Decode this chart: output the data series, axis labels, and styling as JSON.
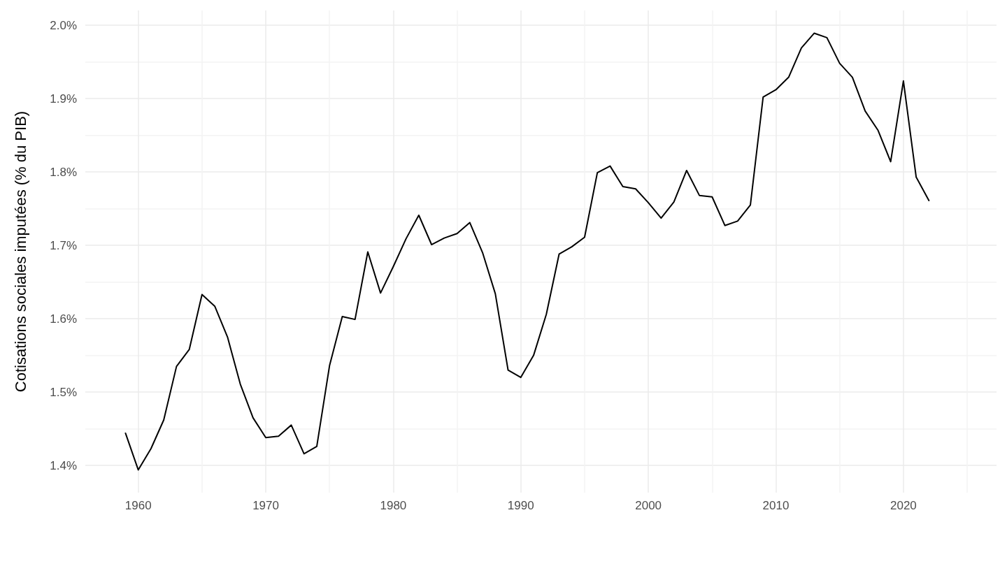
{
  "chart_data": {
    "type": "line",
    "ylabel": "Cotisations sociales imputées (% du PIB)",
    "x": [
      1959,
      1960,
      1961,
      1962,
      1963,
      1964,
      1965,
      1966,
      1967,
      1968,
      1969,
      1970,
      1971,
      1972,
      1973,
      1974,
      1975,
      1976,
      1977,
      1978,
      1979,
      1980,
      1981,
      1982,
      1983,
      1984,
      1985,
      1986,
      1987,
      1988,
      1989,
      1990,
      1991,
      1992,
      1993,
      1994,
      1995,
      1996,
      1997,
      1998,
      1999,
      2000,
      2001,
      2002,
      2003,
      2004,
      2005,
      2006,
      2007,
      2008,
      2009,
      2010,
      2011,
      2012,
      2013,
      2014,
      2015,
      2016,
      2017,
      2018,
      2019,
      2020,
      2021,
      2022
    ],
    "series": [
      {
        "color": "#000000",
        "values": [
          1.444,
          1.394,
          1.423,
          1.462,
          1.535,
          1.558,
          1.633,
          1.617,
          1.575,
          1.511,
          1.465,
          1.438,
          1.44,
          1.455,
          1.416,
          1.426,
          1.536,
          1.603,
          1.599,
          1.691,
          1.635,
          1.671,
          1.709,
          1.741,
          1.701,
          1.71,
          1.716,
          1.731,
          1.69,
          1.634,
          1.53,
          1.52,
          1.55,
          1.606,
          1.688,
          1.698,
          1.711,
          1.799,
          1.808,
          1.78,
          1.777,
          1.758,
          1.737,
          1.759,
          1.802,
          1.768,
          1.766,
          1.727,
          1.733,
          1.755,
          1.902,
          1.912,
          1.929,
          1.969,
          1.989,
          1.983,
          1.948,
          1.929,
          1.883,
          1.857,
          1.814,
          1.924,
          1.793,
          1.761
        ]
      }
    ],
    "xlim": [
      1955.85,
      2027.3
    ],
    "xticks": [
      1960,
      {
        "value": 1965,
        "label": null
      },
      1970,
      {
        "value": 1975,
        "label": null
      },
      1980,
      {
        "value": 1985,
        "label": null
      },
      1990,
      {
        "value": 1995,
        "label": null
      },
      2000,
      {
        "value": 2005,
        "label": null
      },
      2010,
      {
        "value": 2015,
        "label": null
      },
      2020,
      {
        "value": 2025,
        "label": null
      }
    ],
    "ylim": [
      1.363,
      2.02
    ],
    "yticks": [
      {
        "value": 1.4,
        "label": "1.4%"
      },
      {
        "value": 1.45,
        "label": null
      },
      {
        "value": 1.5,
        "label": "1.5%"
      },
      {
        "value": 1.55,
        "label": null
      },
      {
        "value": 1.6,
        "label": "1.6%"
      },
      {
        "value": 1.65,
        "label": null
      },
      {
        "value": 1.7,
        "label": "1.7%"
      },
      {
        "value": 1.75,
        "label": null
      },
      {
        "value": 1.8,
        "label": "1.8%"
      },
      {
        "value": 1.85,
        "label": null
      },
      {
        "value": 1.9,
        "label": "1.9%"
      },
      {
        "value": 1.95,
        "label": null
      },
      {
        "value": 2.0,
        "label": "2.0%"
      }
    ],
    "grid": true,
    "marker": "none",
    "line_style": "solid"
  }
}
